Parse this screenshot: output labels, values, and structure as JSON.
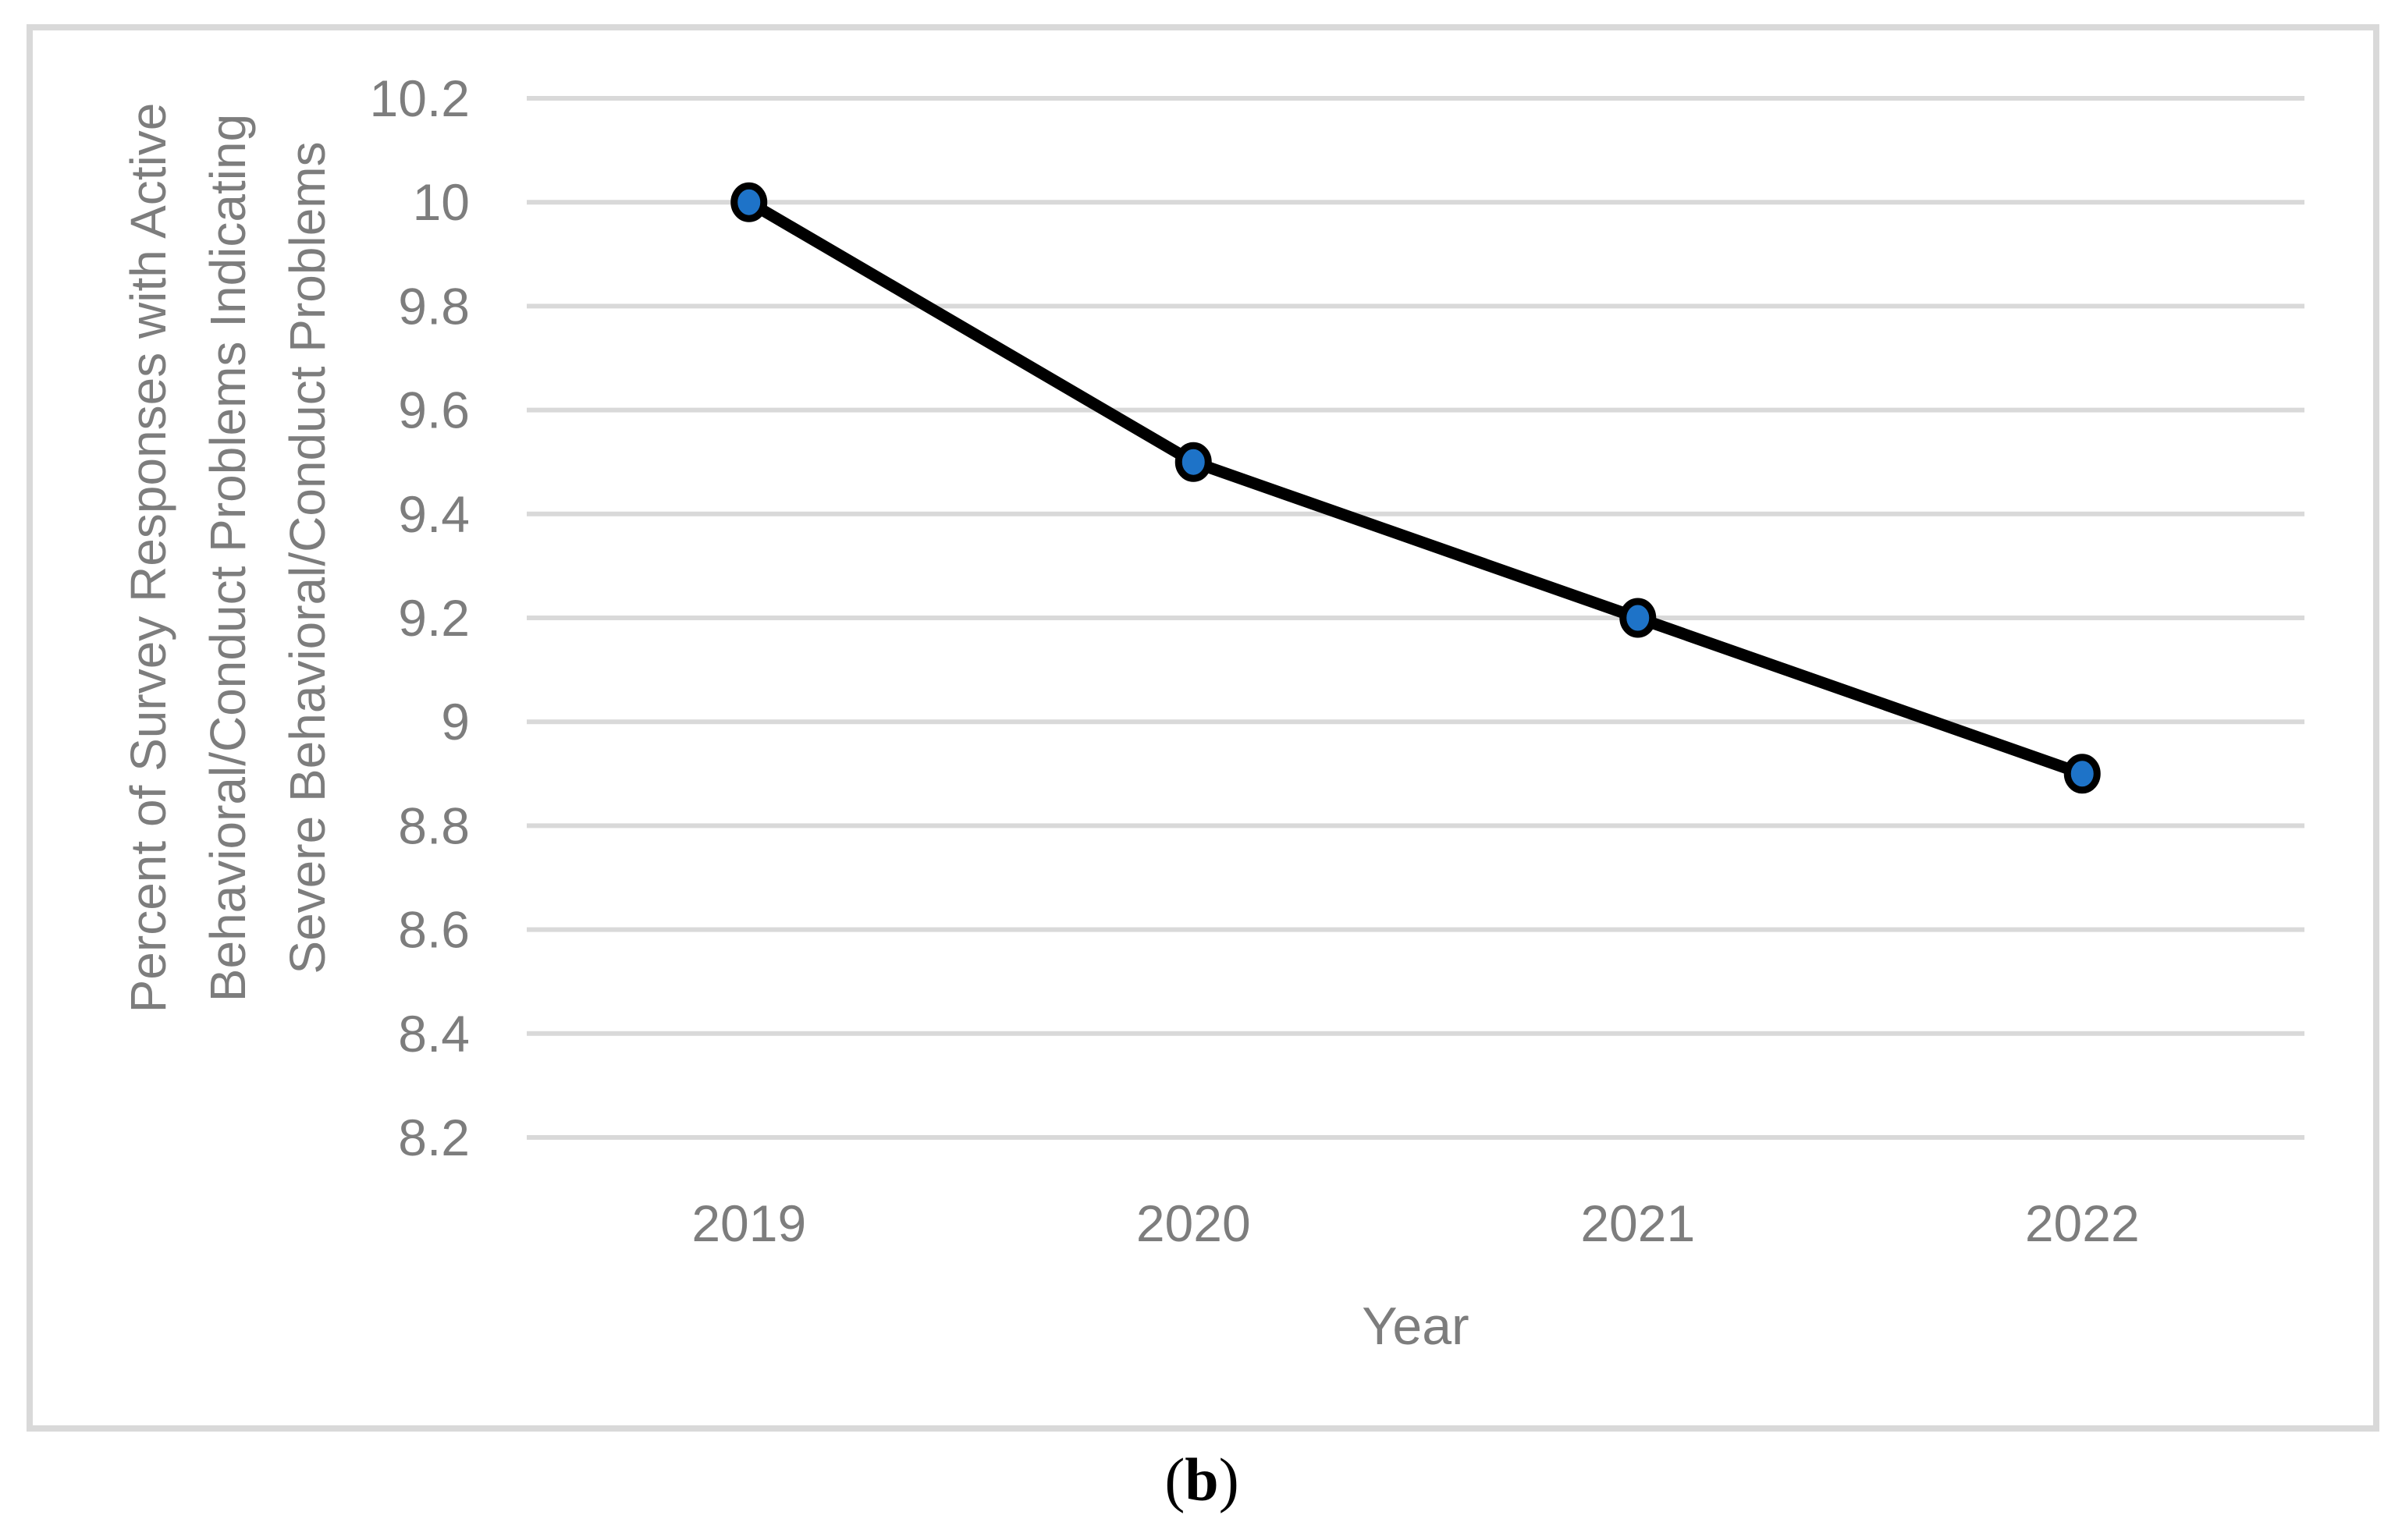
{
  "chart_data": {
    "type": "line",
    "categories": [
      "2019",
      "2020",
      "2021",
      "2022"
    ],
    "values": [
      10,
      9.5,
      9.2,
      8.9
    ],
    "xlabel": "Year",
    "ylabel": "Percent of Survey Responses with Active Behavioral/Conduct Problems Indicating Severe Behavioral/Conduct Problems",
    "ylabel_lines": [
      "Percent of Survey Responses with Active",
      "Behavioral/Conduct Problems Indicating",
      "Severe Behavioral/Conduct Problems"
    ],
    "y_ticks": [
      "10.2",
      "10",
      "9.8",
      "9.6",
      "9.4",
      "9.2",
      "9",
      "8.8",
      "8.6",
      "8.4",
      "8.2"
    ],
    "ylim": [
      8.2,
      10.2
    ],
    "grid": true,
    "legend": false,
    "colors": {
      "line": "#000000",
      "marker_fill": "#1e73c8",
      "marker_stroke": "#000000",
      "gridline": "#d9d9d9",
      "frame_border": "#d9d9d9",
      "axis_text": "#7d7d7d",
      "background": "#ffffff"
    }
  },
  "caption": {
    "open": "(",
    "letter": "b",
    "close": ")"
  }
}
